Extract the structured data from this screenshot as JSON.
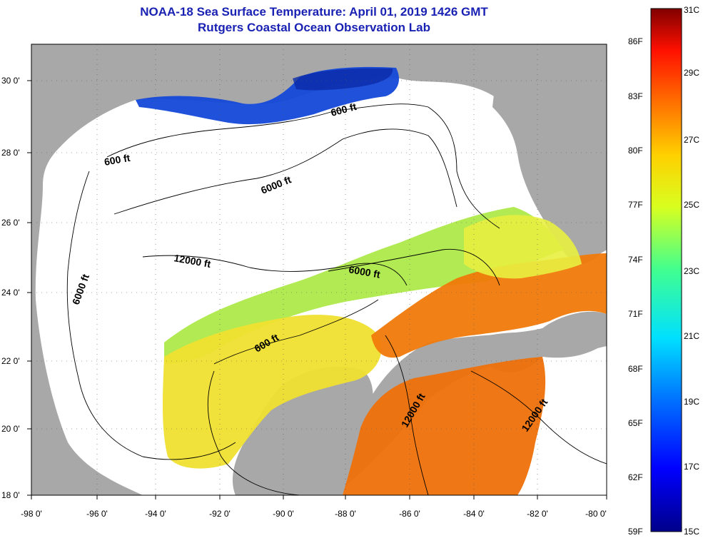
{
  "header": {
    "title": "NOAA-18 Sea Surface Temperature:  April 01, 2019 1426 GMT",
    "subtitle": "Rutgers Coastal Ocean Observation Lab"
  },
  "axes": {
    "x_ticks": [
      "-98 0'",
      "-96 0'",
      "-94 0'",
      "-92 0'",
      "-90 0'",
      "-88 0'",
      "-86 0'",
      "-84 0'",
      "-82 0'",
      "-80 0'"
    ],
    "y_ticks": [
      "30 0'",
      "28 0'",
      "26 0'",
      "24 0'",
      "22 0'",
      "20 0'",
      "18 0'"
    ]
  },
  "contour_labels": [
    "600 ft",
    "600 ft",
    "6000 ft",
    "12000 ft",
    "6000 ft",
    "6000 ft",
    "600 ft",
    "12000 ft",
    "12000 ft"
  ],
  "colorbar": {
    "fahrenheit": [
      "86F",
      "83F",
      "80F",
      "77F",
      "74F",
      "71F",
      "68F",
      "65F",
      "62F",
      "59F"
    ],
    "celsius": [
      "31C",
      "29C",
      "27C",
      "25C",
      "23C",
      "21C",
      "19C",
      "17C",
      "15C"
    ]
  },
  "colors": {
    "land": "#a8a8a8",
    "ocean_no_data": "#ffffff",
    "title_text": "#1a22b4",
    "cold": "#1040d0",
    "warm": "#f07a0a"
  }
}
